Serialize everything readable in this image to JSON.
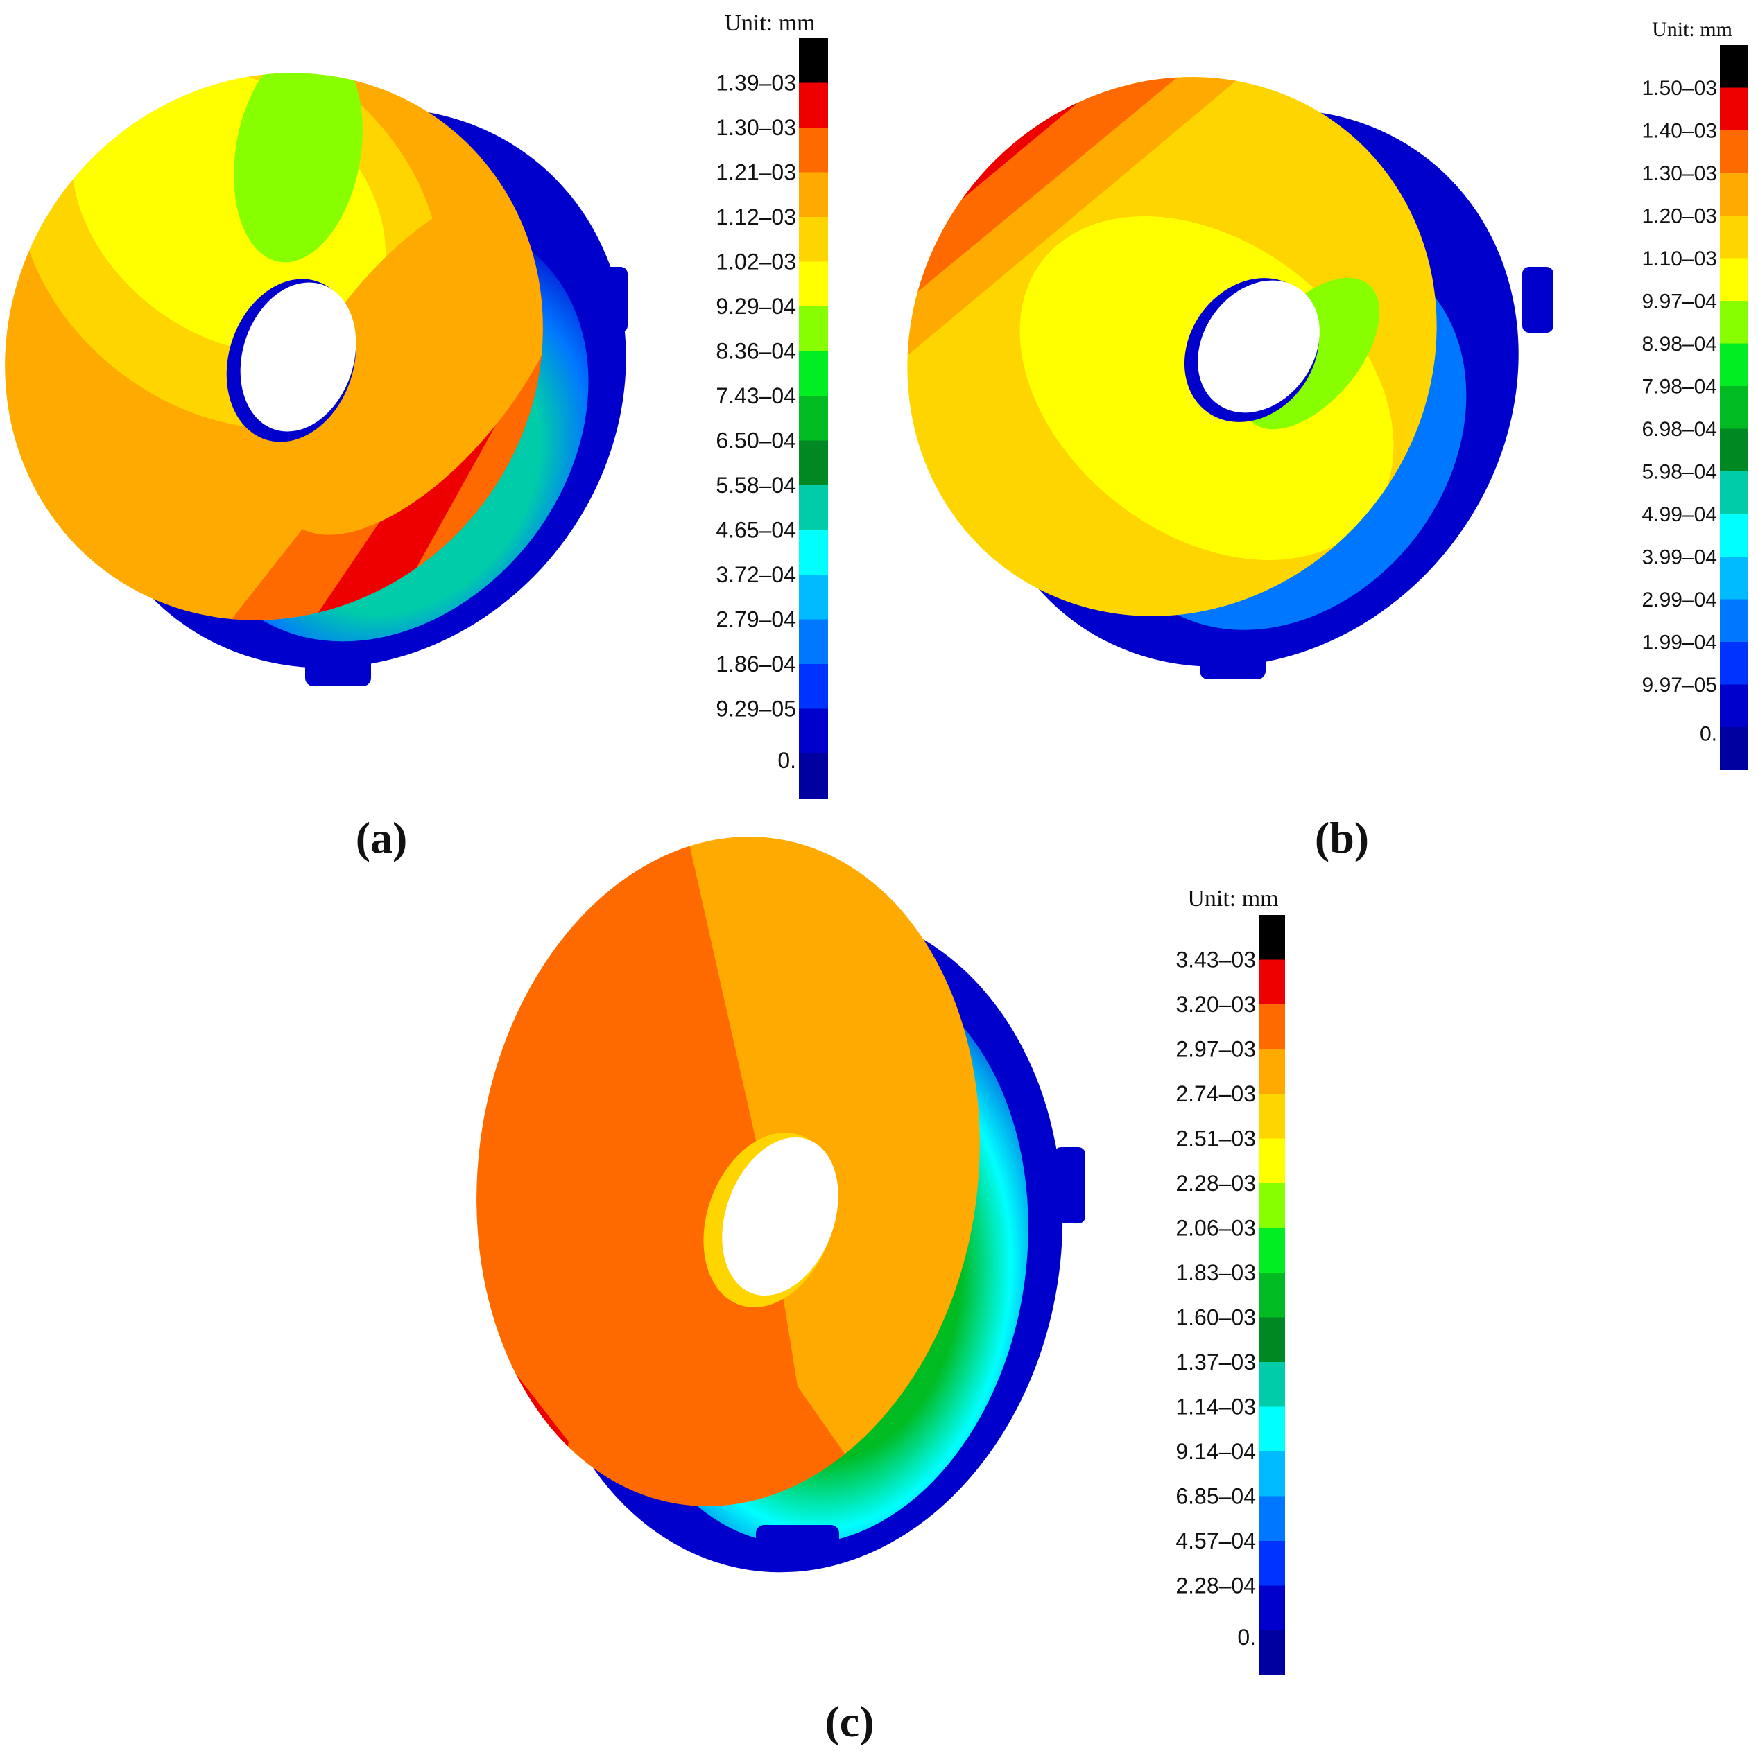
{
  "panels": [
    {
      "id": "a",
      "label": "(a)",
      "unit": "Unit: mm",
      "legend": [
        "1.39–03",
        "1.30–03",
        "1.21–03",
        "1.12–03",
        "1.02–03",
        "9.29–04",
        "8.36–04",
        "7.43–04",
        "6.50–04",
        "5.58–04",
        "4.65–04",
        "3.72–04",
        "2.79–04",
        "1.86–04",
        "9.29–05",
        "0."
      ]
    },
    {
      "id": "b",
      "label": "(b)",
      "unit": "Unit: mm",
      "legend": [
        "1.50–03",
        "1.40–03",
        "1.30–03",
        "1.20–03",
        "1.10–03",
        "9.97–04",
        "8.98–04",
        "7.98–04",
        "6.98–04",
        "5.98–04",
        "4.99–04",
        "3.99–04",
        "2.99–04",
        "1.99–04",
        "9.97–05",
        "0."
      ]
    },
    {
      "id": "c",
      "label": "(c)",
      "unit": "Unit: mm",
      "legend": [
        "3.43–03",
        "3.20–03",
        "2.97–03",
        "2.74–03",
        "2.51–03",
        "2.28–03",
        "2.06–03",
        "1.83–03",
        "1.60–03",
        "1.37–03",
        "1.14–03",
        "9.14–04",
        "6.85–04",
        "4.57–04",
        "2.28–04",
        "0."
      ]
    }
  ],
  "colormap": [
    "#000000",
    "#ee0000",
    "#ff6a00",
    "#ffaa00",
    "#ffd500",
    "#ffff00",
    "#88ff00",
    "#00ee22",
    "#00bb22",
    "#008822",
    "#00ccaa",
    "#00ffff",
    "#00bbff",
    "#0077ff",
    "#0033ff",
    "#0000cc",
    "#0000a0"
  ]
}
